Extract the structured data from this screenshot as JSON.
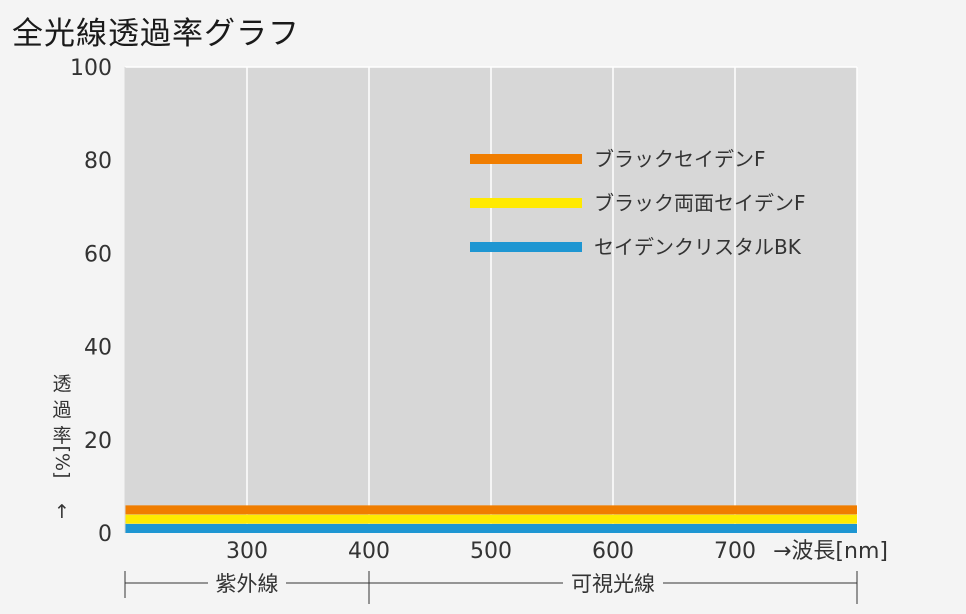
{
  "title": "全光線透過率グラフ",
  "chart_data": {
    "type": "line",
    "title": "全光線透過率グラフ",
    "xlabel": "波長[nm]",
    "ylabel": "透過率[%]",
    "xlim": [
      200,
      800
    ],
    "ylim": [
      0,
      100
    ],
    "x_ticks": [
      300,
      400,
      500,
      600,
      700
    ],
    "y_ticks": [
      0,
      20,
      40,
      60,
      80,
      100
    ],
    "grid": true,
    "legend_position": "top-right",
    "series": [
      {
        "name": "ブラックセイデンF",
        "color": "#f07d00",
        "x": [
          200,
          800
        ],
        "y": [
          4,
          4
        ]
      },
      {
        "name": "ブラック両面セイデンF",
        "color": "#ffea00",
        "x": [
          200,
          800
        ],
        "y": [
          2,
          2
        ]
      },
      {
        "name": "セイデンクリスタルBK",
        "color": "#1e96d2",
        "x": [
          200,
          800
        ],
        "y": [
          0,
          0
        ]
      }
    ],
    "regions": [
      {
        "label": "紫外線",
        "from": 200,
        "to": 400
      },
      {
        "label": "可視光線",
        "from": 400,
        "to": 800
      }
    ],
    "x_axis_arrow_label": "→波長[nm]",
    "y_axis_arrow_label": "↑"
  }
}
